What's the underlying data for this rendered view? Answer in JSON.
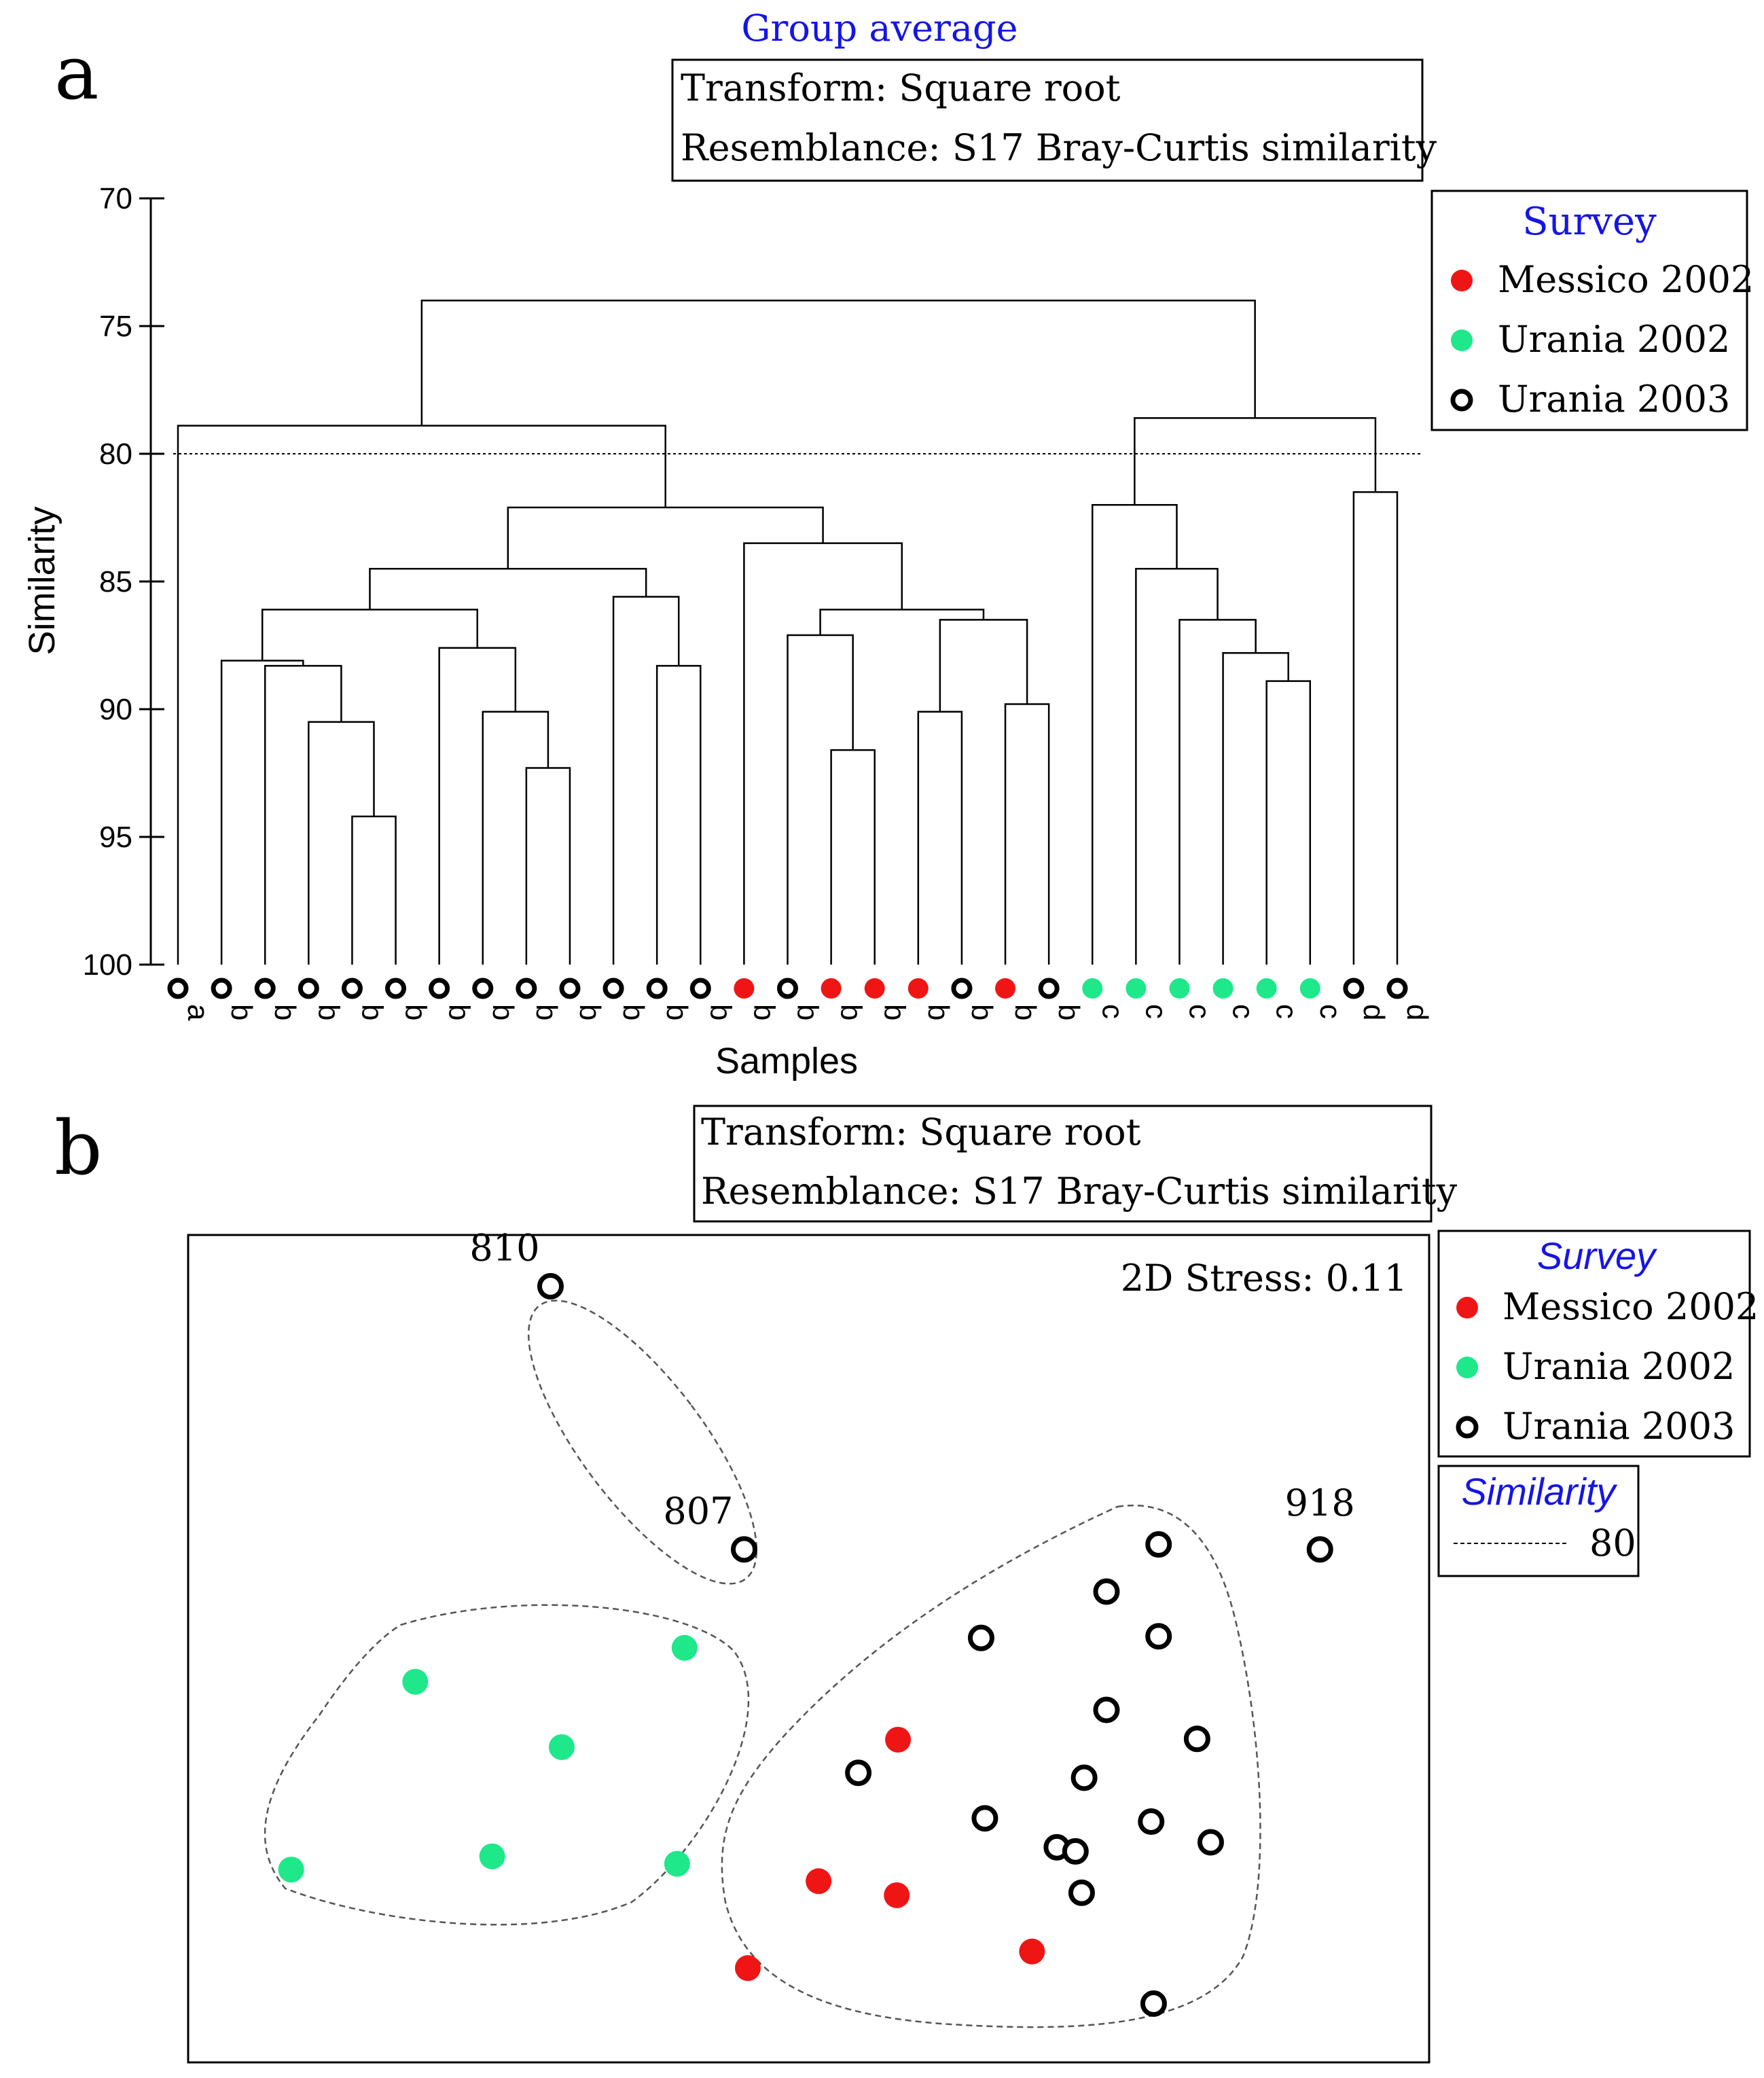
{
  "colors": {
    "messico_2002": "#f01515",
    "urania_2002": "#1ee88a",
    "urania_2003": "#000000",
    "title_blue": "#1515e6"
  },
  "panel_a": {
    "label": "a",
    "title": "Group average",
    "transform_text": "Transform: Square root",
    "resemblance_text": "Resemblance: S17 Bray-Curtis similarity",
    "legend": {
      "title": "Survey",
      "entries": [
        {
          "label": "Messico 2002",
          "key": "messico_2002"
        },
        {
          "label": "Urania 2002",
          "key": "urania_2002"
        },
        {
          "label": "Urania 2003",
          "key": "urania_2003"
        }
      ]
    }
  },
  "panel_b": {
    "label": "b",
    "transform_text": "Transform: Square root",
    "resemblance_text": "Resemblance: S17 Bray-Curtis similarity",
    "stress_text": "2D Stress: 0.11",
    "legend": {
      "title": "Survey",
      "entries": [
        {
          "label": "Messico 2002",
          "key": "messico_2002"
        },
        {
          "label": "Urania 2002",
          "key": "urania_2002"
        },
        {
          "label": "Urania 2003",
          "key": "urania_2003"
        }
      ]
    },
    "similarity_legend": {
      "title": "Similarity",
      "value_label": "80"
    }
  },
  "chart_data": [
    {
      "type": "dendrogram",
      "title": "Group average",
      "xlabel": "Samples",
      "ylabel": "Similarity",
      "ylim": [
        70,
        100
      ],
      "yticks": [
        70,
        75,
        80,
        85,
        90,
        95,
        100
      ],
      "cutoff_line": 80,
      "leaves": [
        {
          "group": "a",
          "survey": "urania_2003"
        },
        {
          "group": "b",
          "survey": "urania_2003"
        },
        {
          "group": "b",
          "survey": "urania_2003"
        },
        {
          "group": "b",
          "survey": "urania_2003"
        },
        {
          "group": "b",
          "survey": "urania_2003"
        },
        {
          "group": "b",
          "survey": "urania_2003"
        },
        {
          "group": "b",
          "survey": "urania_2003"
        },
        {
          "group": "b",
          "survey": "urania_2003"
        },
        {
          "group": "b",
          "survey": "urania_2003"
        },
        {
          "group": "b",
          "survey": "urania_2003"
        },
        {
          "group": "b",
          "survey": "urania_2003"
        },
        {
          "group": "b",
          "survey": "urania_2003"
        },
        {
          "group": "b",
          "survey": "urania_2003"
        },
        {
          "group": "b",
          "survey": "messico_2002"
        },
        {
          "group": "b",
          "survey": "urania_2003"
        },
        {
          "group": "b",
          "survey": "messico_2002"
        },
        {
          "group": "b",
          "survey": "messico_2002"
        },
        {
          "group": "b",
          "survey": "messico_2002"
        },
        {
          "group": "b",
          "survey": "urania_2003"
        },
        {
          "group": "b",
          "survey": "messico_2002"
        },
        {
          "group": "b",
          "survey": "urania_2003"
        },
        {
          "group": "c",
          "survey": "urania_2002"
        },
        {
          "group": "c",
          "survey": "urania_2002"
        },
        {
          "group": "c",
          "survey": "urania_2002"
        },
        {
          "group": "c",
          "survey": "urania_2002"
        },
        {
          "group": "c",
          "survey": "urania_2002"
        },
        {
          "group": "c",
          "survey": "urania_2002"
        },
        {
          "group": "d",
          "survey": "urania_2003"
        },
        {
          "group": "d",
          "survey": "urania_2003"
        }
      ],
      "merges": [
        {
          "left": "L4",
          "right": "L5",
          "sim": 94.2
        },
        {
          "left": "L3",
          "right": "N1",
          "sim": 90.5
        },
        {
          "left": "L2",
          "right": "N2",
          "sim": 88.3
        },
        {
          "left": "L1",
          "right": "N3",
          "sim": 88.1
        },
        {
          "left": "L8",
          "right": "L9",
          "sim": 92.3
        },
        {
          "left": "L7",
          "right": "N5",
          "sim": 90.1
        },
        {
          "left": "L6",
          "right": "N6",
          "sim": 87.6
        },
        {
          "left": "N4",
          "right": "N7",
          "sim": 86.1
        },
        {
          "left": "L11",
          "right": "L12",
          "sim": 88.3
        },
        {
          "left": "L10",
          "right": "N9",
          "sim": 85.6
        },
        {
          "left": "N8",
          "right": "N10",
          "sim": 84.5
        },
        {
          "left": "L15",
          "right": "L16",
          "sim": 91.6
        },
        {
          "left": "L14",
          "right": "N12",
          "sim": 87.1
        },
        {
          "left": "L19",
          "right": "L20",
          "sim": 89.8
        },
        {
          "left": "L17",
          "right": "L18",
          "sim": 90.1
        },
        {
          "left": "N15",
          "right": "N14",
          "sim": 86.5
        },
        {
          "left": "N13",
          "right": "N16",
          "sim": 86.1
        },
        {
          "left": "L13",
          "right": "N17",
          "sim": 83.5
        },
        {
          "left": "N11",
          "right": "N18",
          "sim": 82.1
        },
        {
          "left": "N19",
          "right": "L0",
          "sim": 78.9
        },
        {
          "left": "L25",
          "right": "L26",
          "sim": 88.9
        },
        {
          "left": "L24",
          "right": "N21",
          "sim": 87.8
        },
        {
          "left": "L23",
          "right": "N22",
          "sim": 86.5
        },
        {
          "left": "L22",
          "right": "N23",
          "sim": 84.5
        },
        {
          "left": "L21",
          "right": "N24",
          "sim": 82.0
        },
        {
          "left": "L27",
          "right": "L28",
          "sim": 81.5
        },
        {
          "left": "N25",
          "right": "N26",
          "sim": 78.6
        },
        {
          "left": "N20",
          "right": "N27",
          "sim": 74.0
        }
      ]
    },
    {
      "type": "scatter",
      "title": "",
      "xlabel": "",
      "ylabel": "",
      "xlim": [
        0,
        100
      ],
      "ylim": [
        0,
        100
      ],
      "stress": 0.11,
      "points": [
        {
          "x": 29.2,
          "y": 93.8,
          "survey": "urania_2003",
          "label": "810"
        },
        {
          "x": 44.8,
          "y": 62.0,
          "survey": "urania_2003",
          "label": "807"
        },
        {
          "x": 91.2,
          "y": 62.0,
          "survey": "urania_2003",
          "label": "918"
        },
        {
          "x": 78.2,
          "y": 62.6,
          "survey": "urania_2003"
        },
        {
          "x": 74.0,
          "y": 56.9,
          "survey": "urania_2003"
        },
        {
          "x": 63.9,
          "y": 51.3,
          "survey": "urania_2003"
        },
        {
          "x": 78.2,
          "y": 51.5,
          "survey": "urania_2003"
        },
        {
          "x": 74.0,
          "y": 42.6,
          "survey": "urania_2003"
        },
        {
          "x": 81.3,
          "y": 39.1,
          "survey": "urania_2003"
        },
        {
          "x": 54.0,
          "y": 35.0,
          "survey": "urania_2003"
        },
        {
          "x": 72.2,
          "y": 34.4,
          "survey": "urania_2003"
        },
        {
          "x": 64.2,
          "y": 29.5,
          "survey": "urania_2003"
        },
        {
          "x": 77.6,
          "y": 29.1,
          "survey": "urania_2003"
        },
        {
          "x": 82.4,
          "y": 26.6,
          "survey": "urania_2003"
        },
        {
          "x": 70.0,
          "y": 26.0,
          "survey": "urania_2003"
        },
        {
          "x": 71.5,
          "y": 25.5,
          "survey": "urania_2003"
        },
        {
          "x": 72.0,
          "y": 20.5,
          "survey": "urania_2003"
        },
        {
          "x": 77.8,
          "y": 7.1,
          "survey": "urania_2003"
        },
        {
          "x": 57.2,
          "y": 39.0,
          "survey": "messico_2002"
        },
        {
          "x": 50.8,
          "y": 21.9,
          "survey": "messico_2002"
        },
        {
          "x": 57.1,
          "y": 20.2,
          "survey": "messico_2002"
        },
        {
          "x": 68.0,
          "y": 13.4,
          "survey": "messico_2002"
        },
        {
          "x": 45.1,
          "y": 11.4,
          "survey": "messico_2002"
        },
        {
          "x": 40.0,
          "y": 50.1,
          "survey": "urania_2002"
        },
        {
          "x": 18.3,
          "y": 46.0,
          "survey": "urania_2002"
        },
        {
          "x": 30.1,
          "y": 38.1,
          "survey": "urania_2002"
        },
        {
          "x": 24.5,
          "y": 24.9,
          "survey": "urania_2002"
        },
        {
          "x": 39.4,
          "y": 24.0,
          "survey": "urania_2002"
        },
        {
          "x": 8.3,
          "y": 23.3,
          "survey": "urania_2002"
        }
      ],
      "similarity_contour": 80
    }
  ]
}
